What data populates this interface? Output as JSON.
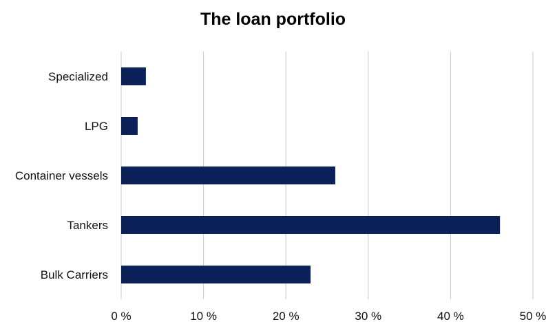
{
  "chart_data": {
    "type": "bar",
    "orientation": "horizontal",
    "title": "The loan portfolio",
    "xlabel": "",
    "ylabel": "",
    "categories": [
      "Specialized",
      "LPG",
      "Container vessels",
      "Tankers",
      "Bulk Carriers"
    ],
    "values": [
      3,
      2,
      26,
      46,
      23
    ],
    "xlim": [
      0,
      50
    ],
    "xticks": [
      0,
      10,
      20,
      30,
      40,
      50
    ],
    "xtick_labels": [
      "0 %",
      "10 %",
      "20 %",
      "30 %",
      "40 %",
      "50 %"
    ],
    "grid": "vertical",
    "legend": "none",
    "bar_color": "#0c2158",
    "grid_color": "#c8c8c8"
  }
}
